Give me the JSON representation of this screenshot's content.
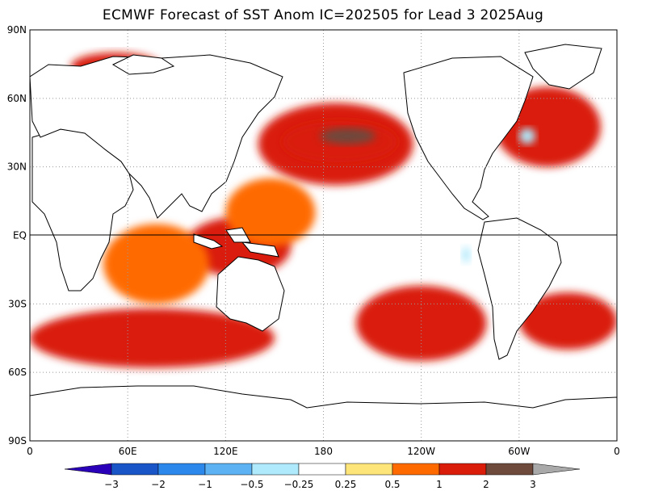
{
  "title": "ECMWF Forecast of SST Anom IC=202505 for Lead 3 2025Aug",
  "map": {
    "lat_labels": [
      "90N",
      "60N",
      "30N",
      "EQ",
      "30S",
      "60S",
      "90S"
    ],
    "lon_labels": [
      "0",
      "60E",
      "120E",
      "180",
      "120W",
      "60W",
      "0"
    ],
    "lon_range": [
      0,
      360
    ],
    "lat_range": [
      -90,
      90
    ],
    "equator_line": true,
    "grid": "dotted"
  },
  "colorbar": {
    "labels": [
      "-3",
      "-2",
      "-1",
      "-0.5",
      "-0.25",
      "0.25",
      "0.5",
      "1",
      "2",
      "3"
    ],
    "colors": [
      "#2a00b8",
      "#1a55c8",
      "#2c88ea",
      "#5db2f4",
      "#aee9fc",
      "#ffffff",
      "#fde57a",
      "#ff6a00",
      "#d91d0a",
      "#6e4a3c",
      "#a9a9a9"
    ]
  },
  "anomaly_regions": [
    {
      "name": "north-pacific-warm",
      "lon": [
        140,
        235
      ],
      "lat": [
        22,
        58
      ],
      "level": 1.2
    },
    {
      "name": "north-pacific-core",
      "lon": [
        155,
        225
      ],
      "lat": [
        32,
        50
      ],
      "level": 1.6
    },
    {
      "name": "north-pacific-peak",
      "lon": [
        178,
        212
      ],
      "lat": [
        40,
        47
      ],
      "level": 2.5
    },
    {
      "name": "indonesian-seas",
      "lon": [
        95,
        160
      ],
      "lat": [
        -18,
        8
      ],
      "level": 1.6
    },
    {
      "name": "southern-indian-ocean",
      "lon": [
        0,
        150
      ],
      "lat": [
        -58,
        -32
      ],
      "level": 1.0
    },
    {
      "name": "south-pacific",
      "lon": [
        200,
        280
      ],
      "lat": [
        -55,
        -22
      ],
      "level": 1.0
    },
    {
      "name": "south-atlantic",
      "lon": [
        300,
        360
      ],
      "lat": [
        -50,
        -25
      ],
      "level": 1.2
    },
    {
      "name": "north-atlantic",
      "lon": [
        285,
        350
      ],
      "lat": [
        30,
        65
      ],
      "level": 1.0
    },
    {
      "name": "barents-kara",
      "lon": [
        25,
        80
      ],
      "lat": [
        68,
        80
      ],
      "level": 1.2
    },
    {
      "name": "indian-ocean-tropical",
      "lon": [
        45,
        110
      ],
      "lat": [
        -30,
        5
      ],
      "level": 0.6
    },
    {
      "name": "west-pacific-tropical",
      "lon": [
        120,
        175
      ],
      "lat": [
        -5,
        25
      ],
      "level": 0.8
    },
    {
      "name": "eastern-pacific-near-neutral",
      "lon": [
        185,
        275
      ],
      "lat": [
        -10,
        15
      ],
      "level": 0.0
    },
    {
      "name": "labrador-cool",
      "lon": [
        300,
        310
      ],
      "lat": [
        40,
        47
      ],
      "level": -0.4
    },
    {
      "name": "peru-cool",
      "lon": [
        265,
        270
      ],
      "lat": [
        -12,
        -5
      ],
      "level": -0.4
    }
  ]
}
